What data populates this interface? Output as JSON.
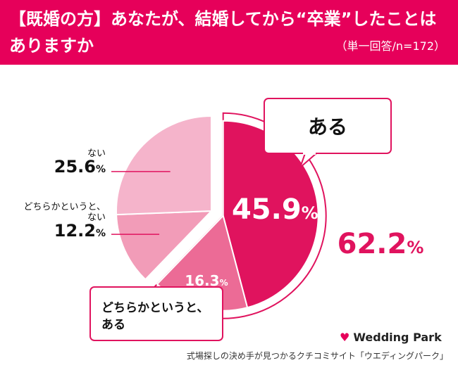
{
  "header": {
    "title": "【既婚の方】あなたが、結婚してから“卒業”したことは\nありますか",
    "subtitle": "（単一回答/n=172）"
  },
  "chart_data": {
    "type": "pie",
    "categories": [
      "ある",
      "どちらかというと、ある",
      "どちらかというと、ない",
      "ない"
    ],
    "values": [
      45.9,
      16.3,
      12.2,
      25.6
    ],
    "unit": "%",
    "colors": [
      "#e0135e",
      "#ec6b96",
      "#f29cb8",
      "#f5b4cb"
    ],
    "callout_total": {
      "label": "ある",
      "value": "62.2"
    },
    "callout_yes_somewhat": "どちらかというと、\nある",
    "labels": {
      "nai": {
        "label": "ない",
        "value": "25.6"
      },
      "somewhat_nai": {
        "label": "どちらかというと、\nない",
        "value": "12.2"
      },
      "aru": {
        "value": "45.9"
      },
      "somewhat_aru": {
        "value": "16.3"
      }
    }
  },
  "brand": {
    "logo_text": "Wedding Park",
    "footer": "式場探しの決め手が見つかるクチコミサイト「ウエディングパーク」"
  }
}
